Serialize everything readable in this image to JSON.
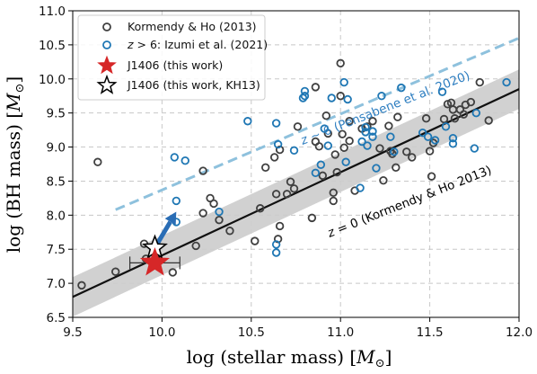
{
  "chart_data": {
    "type": "scatter",
    "xlabel": "log (stellar mass)  [M_⊙]",
    "ylabel": "log (BH mass) [M_⊙]",
    "xlim": [
      9.5,
      12.0
    ],
    "ylim": [
      6.5,
      11.0
    ],
    "xticks": [
      "9.5",
      "10.0",
      "10.5",
      "11.0",
      "11.5",
      "12.0"
    ],
    "yticks": [
      "6.5",
      "7.0",
      "7.5",
      "8.0",
      "8.5",
      "9.0",
      "9.5",
      "10.0",
      "10.5",
      "11.0"
    ],
    "grid": true,
    "legend_position": "top-left",
    "legend": [
      {
        "label": "Kormendy & Ho (2013)",
        "marker": "open-circle",
        "color": "#404040"
      },
      {
        "label": "z > 6: Izumi et al. (2021)",
        "marker": "open-circle",
        "color": "#1f77b4"
      },
      {
        "label": "J1406 (this work)",
        "marker": "filled-star",
        "color": "#d62728"
      },
      {
        "label": "J1406 (this work, KH13)",
        "marker": "open-star",
        "color": "#000000"
      }
    ],
    "series": [
      {
        "name": "Kormendy & Ho (2013)",
        "color": "#404040",
        "points": [
          [
            9.55,
            6.97
          ],
          [
            9.64,
            8.78
          ],
          [
            9.74,
            7.17
          ],
          [
            9.9,
            7.58
          ],
          [
            9.91,
            7.36
          ],
          [
            10.06,
            7.16
          ],
          [
            10.19,
            7.55
          ],
          [
            10.23,
            8.03
          ],
          [
            10.23,
            8.65
          ],
          [
            10.27,
            8.25
          ],
          [
            10.29,
            8.17
          ],
          [
            10.32,
            7.93
          ],
          [
            10.38,
            7.77
          ],
          [
            10.52,
            7.62
          ],
          [
            10.55,
            8.1
          ],
          [
            10.58,
            8.7
          ],
          [
            10.63,
            8.85
          ],
          [
            10.64,
            8.31
          ],
          [
            10.65,
            7.65
          ],
          [
            10.66,
            7.84
          ],
          [
            10.66,
            8.96
          ],
          [
            10.7,
            8.31
          ],
          [
            10.72,
            8.49
          ],
          [
            10.74,
            8.39
          ],
          [
            10.76,
            9.3
          ],
          [
            10.84,
            7.96
          ],
          [
            10.86,
            9.08
          ],
          [
            10.86,
            9.88
          ],
          [
            10.88,
            9.01
          ],
          [
            10.9,
            8.58
          ],
          [
            10.92,
            9.46
          ],
          [
            10.93,
            9.2
          ],
          [
            10.96,
            8.21
          ],
          [
            10.96,
            8.33
          ],
          [
            10.97,
            8.89
          ],
          [
            10.98,
            8.63
          ],
          [
            11.0,
            10.23
          ],
          [
            11.0,
            9.75
          ],
          [
            11.01,
            9.19
          ],
          [
            11.02,
            8.99
          ],
          [
            11.05,
            9.09
          ],
          [
            11.05,
            9.38
          ],
          [
            11.08,
            8.36
          ],
          [
            11.12,
            9.27
          ],
          [
            11.15,
            9.3
          ],
          [
            11.18,
            9.38
          ],
          [
            11.22,
            8.98
          ],
          [
            11.24,
            8.51
          ],
          [
            11.27,
            9.31
          ],
          [
            11.28,
            8.94
          ],
          [
            11.29,
            8.9
          ],
          [
            11.31,
            8.7
          ],
          [
            11.32,
            9.44
          ],
          [
            11.37,
            8.93
          ],
          [
            11.4,
            8.85
          ],
          [
            11.48,
            9.42
          ],
          [
            11.5,
            8.94
          ],
          [
            11.51,
            8.57
          ],
          [
            11.52,
            9.06
          ],
          [
            11.58,
            9.41
          ],
          [
            11.6,
            9.63
          ],
          [
            11.62,
            9.65
          ],
          [
            11.63,
            9.55
          ],
          [
            11.64,
            9.42
          ],
          [
            11.67,
            9.55
          ],
          [
            11.69,
            9.48
          ],
          [
            11.7,
            9.62
          ],
          [
            11.73,
            9.66
          ],
          [
            11.78,
            9.95
          ],
          [
            11.83,
            9.39
          ]
        ]
      },
      {
        "name": "z > 6: Izumi et al. (2021)",
        "color": "#1f77b4",
        "points": [
          [
            10.07,
            8.85
          ],
          [
            10.08,
            8.21
          ],
          [
            10.08,
            7.9
          ],
          [
            10.13,
            8.8
          ],
          [
            10.32,
            8.05
          ],
          [
            10.48,
            9.38
          ],
          [
            10.64,
            9.35
          ],
          [
            10.64,
            7.57
          ],
          [
            10.64,
            7.45
          ],
          [
            10.65,
            9.04
          ],
          [
            10.74,
            8.95
          ],
          [
            10.79,
            9.72
          ],
          [
            10.8,
            9.75
          ],
          [
            10.8,
            9.82
          ],
          [
            10.86,
            8.62
          ],
          [
            10.89,
            8.74
          ],
          [
            10.91,
            9.27
          ],
          [
            10.93,
            9.02
          ],
          [
            10.95,
            9.72
          ],
          [
            11.02,
            9.95
          ],
          [
            11.03,
            8.78
          ],
          [
            11.04,
            9.7
          ],
          [
            11.11,
            8.4
          ],
          [
            11.12,
            9.08
          ],
          [
            11.14,
            9.29
          ],
          [
            11.14,
            9.22
          ],
          [
            11.15,
            9.02
          ],
          [
            11.18,
            9.15
          ],
          [
            11.18,
            9.23
          ],
          [
            11.2,
            8.69
          ],
          [
            11.23,
            9.75
          ],
          [
            11.28,
            9.15
          ],
          [
            11.3,
            8.93
          ],
          [
            11.34,
            9.87
          ],
          [
            11.46,
            9.21
          ],
          [
            11.49,
            9.15
          ],
          [
            11.53,
            9.1
          ],
          [
            11.57,
            9.81
          ],
          [
            11.59,
            9.3
          ],
          [
            11.63,
            9.05
          ],
          [
            11.63,
            9.13
          ],
          [
            11.75,
            8.98
          ],
          [
            11.76,
            9.5
          ],
          [
            11.93,
            9.95
          ]
        ]
      },
      {
        "name": "J1406 (this work)",
        "color": "#d62728",
        "points": [
          [
            9.96,
            7.3
          ]
        ],
        "xerr": [
          [
            9.82,
            10.1
          ]
        ]
      },
      {
        "name": "J1406 (this work, KH13)",
        "color": "#000000",
        "points": [
          [
            9.96,
            7.52
          ]
        ]
      }
    ],
    "lines": [
      {
        "label": "z = 0 (Kormendy & Ho 2013)",
        "style": "solid",
        "color": "#111111",
        "x": [
          9.5,
          12.0
        ],
        "y": [
          6.8,
          9.85
        ],
        "band_halfwidth_dex": 0.29,
        "band_color": "#cccccc"
      },
      {
        "label": "z ~ 6 (Pensabene et al. 2020)",
        "style": "dashed",
        "color": "#8ec1dd",
        "x": [
          9.74,
          12.0
        ],
        "y": [
          8.08,
          10.6
        ]
      }
    ],
    "arrow": {
      "color": "#2a6db5",
      "from": [
        9.96,
        7.52
      ],
      "to": [
        10.08,
        8.05
      ]
    }
  }
}
